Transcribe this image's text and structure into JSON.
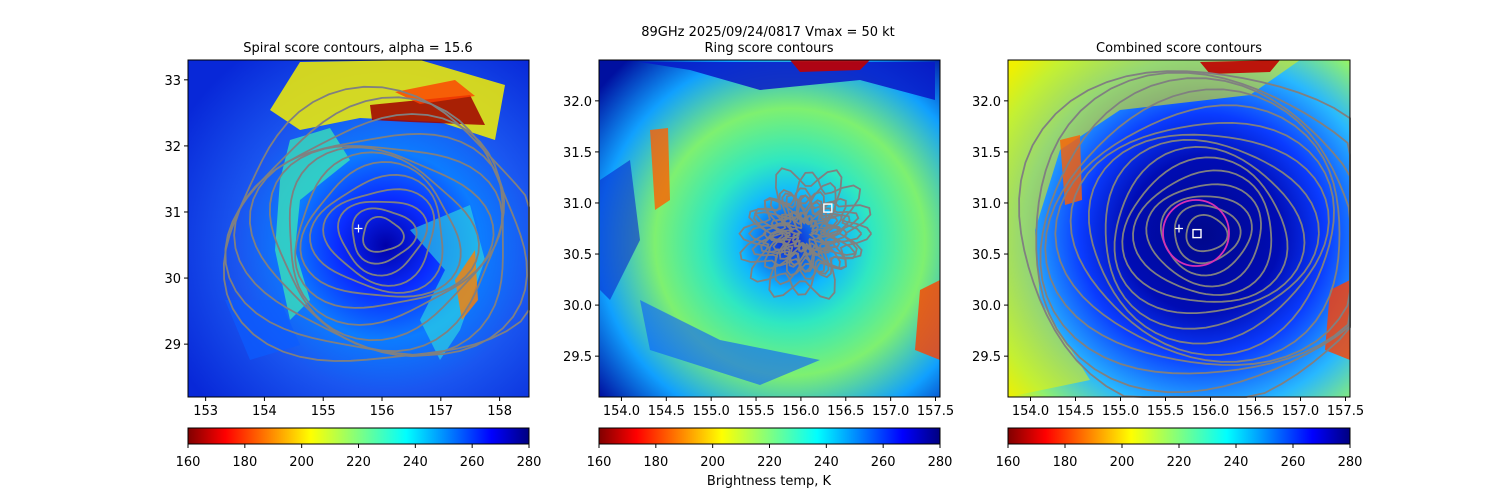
{
  "suptitle": "89GHz  2025/09/24/0817    Vmax = 50 kt",
  "colorbar_label": "Brightness temp, K",
  "colormap": "jet_r",
  "colors": {
    "contour": "#808080",
    "marker": "#ffffff",
    "circle": "#d62fb4",
    "axes": "#000000"
  },
  "chart_data": [
    {
      "type": "heatmap",
      "title": "Spiral score contours, alpha = 15.6",
      "xlim": [
        152.7,
        158.5
      ],
      "ylim": [
        28.2,
        33.3
      ],
      "xticks": [
        "153",
        "154",
        "155",
        "156",
        "157",
        "158"
      ],
      "xtick_values": [
        153,
        154,
        155,
        156,
        157,
        158
      ],
      "yticks": [
        "29",
        "30",
        "31",
        "32",
        "33"
      ],
      "ytick_values": [
        29,
        30,
        31,
        32,
        33
      ],
      "contour_center": [
        156.0,
        30.65
      ],
      "markers": [
        {
          "symbol": "plus",
          "x": 155.6,
          "y": 30.75
        }
      ],
      "colorbar": {
        "range": [
          160,
          280
        ],
        "ticks": [
          "160",
          "180",
          "200",
          "220",
          "240",
          "260",
          "280"
        ]
      }
    },
    {
      "type": "heatmap",
      "title": "Ring score contours",
      "xlim": [
        153.75,
        157.55
      ],
      "ylim": [
        29.1,
        32.4
      ],
      "xticks": [
        "154.0",
        "154.5",
        "155.0",
        "155.5",
        "156.0",
        "156.5",
        "157.0",
        "157.5"
      ],
      "xtick_values": [
        154.0,
        154.5,
        155.0,
        155.5,
        156.0,
        156.5,
        157.0,
        157.5
      ],
      "yticks": [
        "29.5",
        "30.0",
        "30.5",
        "31.0",
        "31.5",
        "32.0"
      ],
      "ytick_values": [
        29.5,
        30.0,
        30.5,
        31.0,
        31.5,
        32.0
      ],
      "contour_center": [
        156.05,
        30.7
      ],
      "markers": [
        {
          "symbol": "square",
          "x": 156.3,
          "y": 30.95
        }
      ],
      "colorbar": {
        "range": [
          160,
          280
        ],
        "ticks": [
          "160",
          "180",
          "200",
          "220",
          "240",
          "260",
          "280"
        ]
      }
    },
    {
      "type": "heatmap",
      "title": "Combined score contours",
      "xlim": [
        153.75,
        157.55
      ],
      "ylim": [
        29.1,
        32.4
      ],
      "xticks": [
        "154.0",
        "154.5",
        "155.0",
        "155.5",
        "156.0",
        "156.5",
        "157.0",
        "157.5"
      ],
      "xtick_values": [
        154.0,
        154.5,
        155.0,
        155.5,
        156.0,
        156.5,
        157.0,
        157.5
      ],
      "yticks": [
        "29.5",
        "30.0",
        "30.5",
        "31.0",
        "31.5",
        "32.0"
      ],
      "ytick_values": [
        29.5,
        30.0,
        30.5,
        31.0,
        31.5,
        32.0
      ],
      "contour_center": [
        155.95,
        30.7
      ],
      "markers": [
        {
          "symbol": "plus",
          "x": 155.65,
          "y": 30.75
        },
        {
          "symbol": "square",
          "x": 155.85,
          "y": 30.7
        }
      ],
      "colorbar": {
        "range": [
          160,
          280
        ],
        "ticks": [
          "160",
          "180",
          "200",
          "220",
          "240",
          "260",
          "280"
        ]
      }
    }
  ]
}
